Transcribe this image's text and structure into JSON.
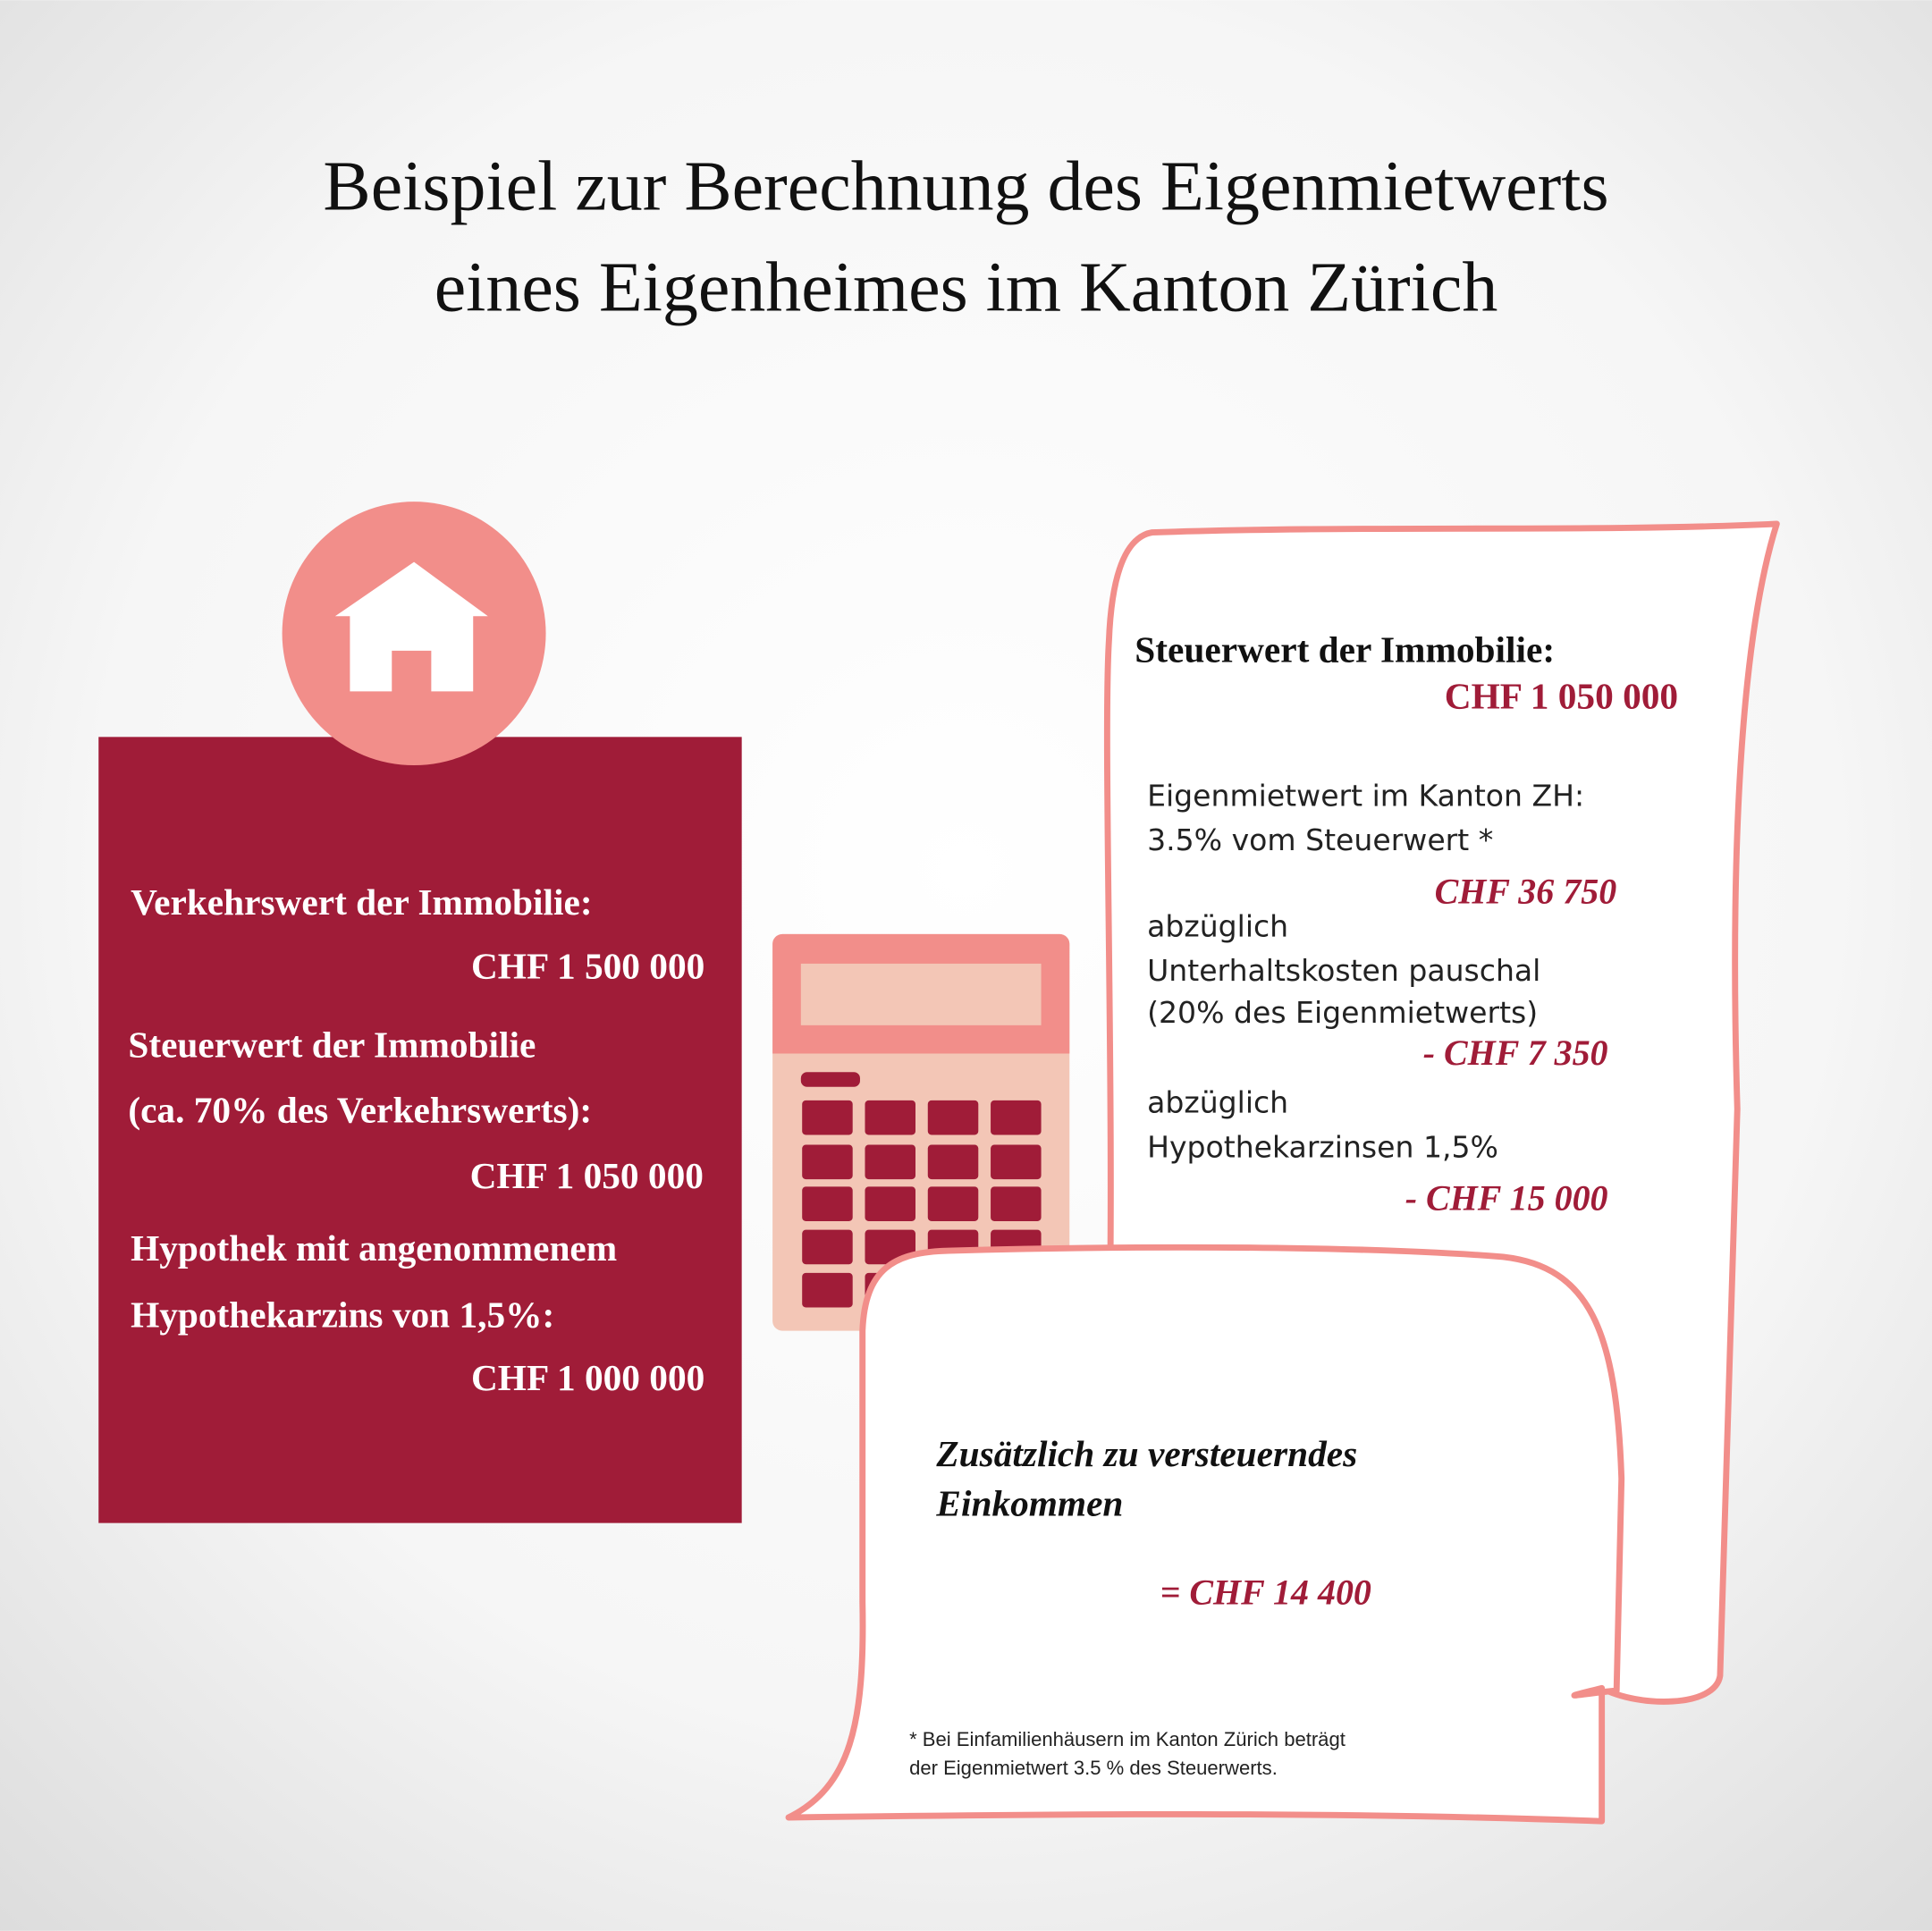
{
  "title": [
    "Beispiel zur Berechnung des Eigenmietwerts",
    "eines Eigenheimes im Kanton Zürich"
  ],
  "property_box": {
    "items": [
      {
        "label": [
          "Verkehrswert der Immobilie:"
        ],
        "value": "CHF 1 500 000"
      },
      {
        "label": [
          "Steuerwert der Immobilie",
          "(ca. 70% des Verkehrswerts):"
        ],
        "value": "CHF 1 050 000"
      },
      {
        "label": [
          "Hypothek mit angenommenem",
          "Hypothekarzins von 1,5%:"
        ],
        "value": "CHF 1 000 000"
      }
    ]
  },
  "receipt": {
    "heading": "Steuerwert der Immobilie:",
    "heading_value": "CHF 1 050 000",
    "steps": [
      {
        "lines": [
          "Eigenmietwert im Kanton ZH:",
          "3.5% vom Steuerwert *"
        ],
        "value": "CHF 36 750"
      },
      {
        "lines": [
          "abzüglich",
          "Unterhaltskosten pauschal",
          "(20% des Eigenmietwerts)"
        ],
        "value": "- CHF 7 350"
      },
      {
        "lines": [
          "abzüglich",
          "Hypothekarzinsen 1,5%"
        ],
        "value": "- CHF 15 000"
      }
    ],
    "result_label": [
      "Zusätzlich zu versteuerndes",
      "Einkommen"
    ],
    "result_value": "= CHF 14 400",
    "footnote": [
      "* Bei Einfamilienhäusern im Kanton Zürich beträgt",
      "der Eigenmietwert 3.5 % des Steuerwerts."
    ]
  }
}
